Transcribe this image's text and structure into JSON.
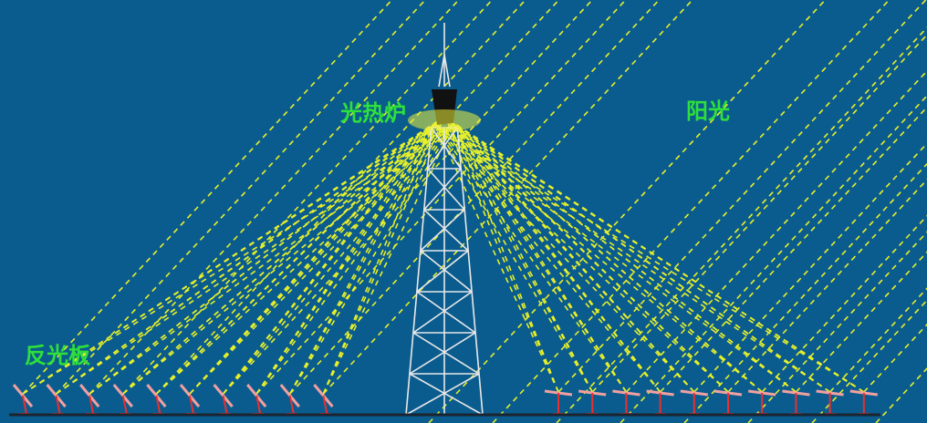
{
  "labels": {
    "furnace": "光热炉",
    "sunlight": "阳光",
    "reflector": "反光板"
  }
}
